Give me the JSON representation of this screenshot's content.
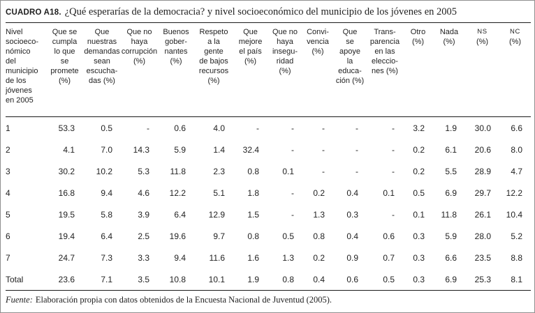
{
  "title": {
    "label": "CUADRO A18.",
    "text": "¿Qué esperarías de la democracia? y nivel socioeconómico del municipio de los jóvenes en 2005"
  },
  "table": {
    "row_header": "Nivel\nsocioeco-\nnómico\ndel\nmunicipio\nde los\njóvenes\nen 2005",
    "columns": [
      "Que se\ncumpla\nlo que\nse\npromete\n(%)",
      "Que\nnuestras\ndemandas\nsean\nescucha-\ndas (%)",
      "Que no\nhaya\ncorrupción\n(%)",
      "Buenos\ngober-\nnantes\n(%)",
      "Respeto\na la\ngente\nde bajos\nrecursos\n(%)",
      "Que\nmejore\nel país\n(%)",
      "Que no\nhaya\ninsegu-\nridad\n(%)",
      "Convi-\nvencia\n(%)",
      "Que\nse\napoye\nla\neduca-\nción (%)",
      "Trans-\nparencia\nen las\neleccio-\nnes (%)",
      "Otro\n(%)",
      "Nada\n(%)",
      "NS\n(%)",
      "NC\n(%)"
    ],
    "rows": [
      {
        "level": "1",
        "values": [
          "53.3",
          "0.5",
          "-",
          "0.6",
          "4.0",
          "-",
          "-",
          "-",
          "-",
          "-",
          "3.2",
          "1.9",
          "30.0",
          "6.6"
        ]
      },
      {
        "level": "2",
        "values": [
          "4.1",
          "7.0",
          "14.3",
          "5.9",
          "1.4",
          "32.4",
          "-",
          "-",
          "-",
          "-",
          "0.2",
          "6.1",
          "20.6",
          "8.0"
        ]
      },
      {
        "level": "3",
        "values": [
          "30.2",
          "10.2",
          "5.3",
          "11.8",
          "2.3",
          "0.8",
          "0.1",
          "-",
          "-",
          "-",
          "0.2",
          "5.5",
          "28.9",
          "4.7"
        ]
      },
      {
        "level": "4",
        "values": [
          "16.8",
          "9.4",
          "4.6",
          "12.2",
          "5.1",
          "1.8",
          "-",
          "0.2",
          "0.4",
          "0.1",
          "0.5",
          "6.9",
          "29.7",
          "12.2"
        ]
      },
      {
        "level": "5",
        "values": [
          "19.5",
          "5.8",
          "3.9",
          "6.4",
          "12.9",
          "1.5",
          "-",
          "1.3",
          "0.3",
          "-",
          "0.1",
          "11.8",
          "26.1",
          "10.4"
        ]
      },
      {
        "level": "6",
        "values": [
          "19.4",
          "6.4",
          "2.5",
          "19.6",
          "9.7",
          "0.8",
          "0.5",
          "0.8",
          "0.4",
          "0.6",
          "0.3",
          "5.9",
          "28.0",
          "5.2"
        ]
      },
      {
        "level": "7",
        "values": [
          "24.7",
          "7.3",
          "3.3",
          "9.4",
          "11.6",
          "1.6",
          "1.3",
          "0.2",
          "0.9",
          "0.7",
          "0.3",
          "6.6",
          "23.5",
          "8.8"
        ]
      },
      {
        "level": "Total",
        "values": [
          "23.6",
          "7.1",
          "3.5",
          "10.8",
          "10.1",
          "1.9",
          "0.8",
          "0.4",
          "0.6",
          "0.5",
          "0.3",
          "6.9",
          "25.3",
          "8.1"
        ]
      }
    ]
  },
  "source": {
    "label": "Fuente:",
    "text": "Elaboración propia con datos obtenidos de la Encuesta Nacional de Juventud (2005)."
  }
}
